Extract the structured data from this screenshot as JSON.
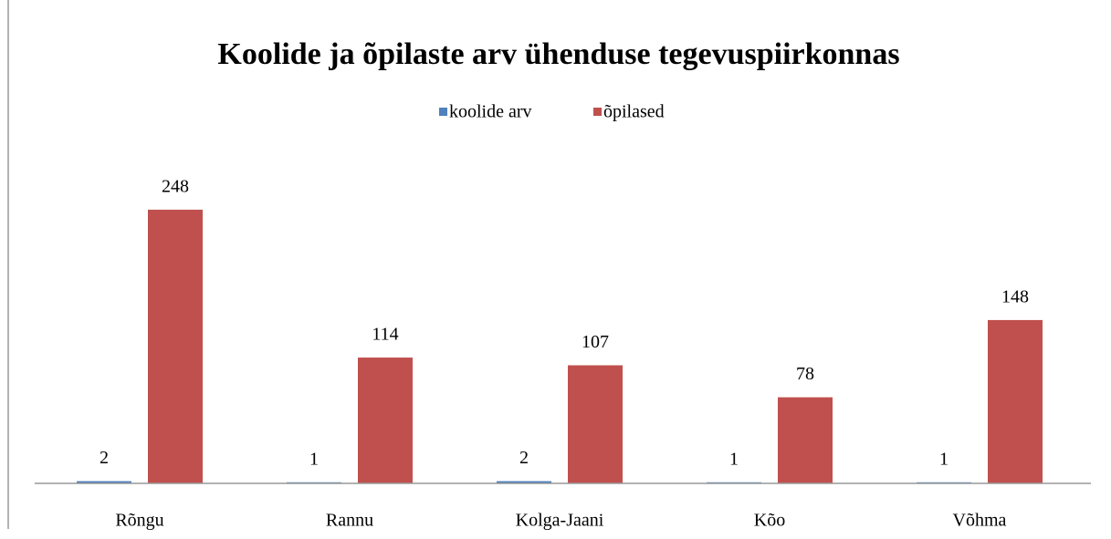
{
  "chart_data": {
    "type": "bar",
    "title": "Koolide ja õpilaste arv ühenduse tegevuspiirkonnas",
    "categories": [
      "Rõngu",
      "Rannu",
      "Kolga-Jaani",
      "Kõo",
      "Võhma"
    ],
    "series": [
      {
        "name": "koolide arv",
        "color": "#4f81bd",
        "values": [
          2,
          1,
          2,
          1,
          1
        ]
      },
      {
        "name": "õpilased",
        "color": "#c0504d",
        "values": [
          248,
          114,
          107,
          78,
          148
        ]
      }
    ],
    "ylim": [
      0,
      300
    ],
    "legend": "top"
  }
}
